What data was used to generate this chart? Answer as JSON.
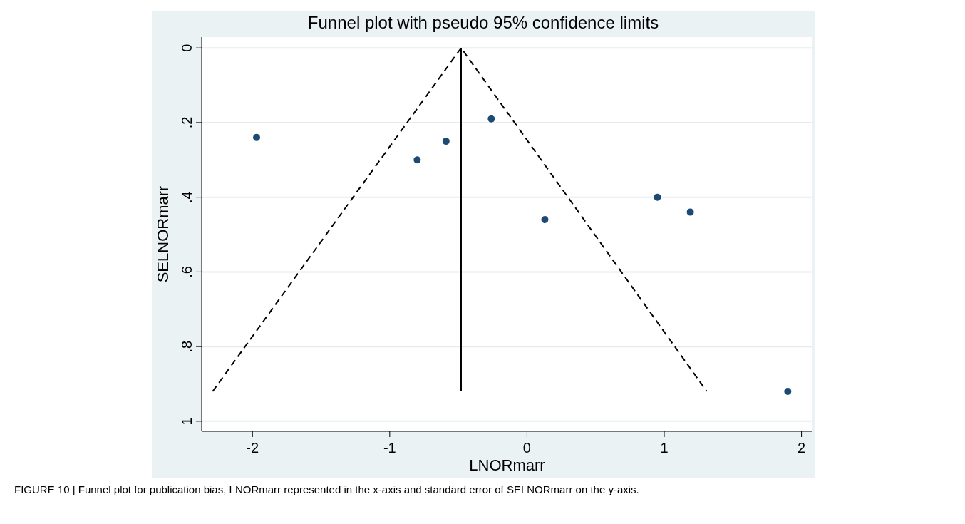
{
  "chart_data": {
    "type": "scatter",
    "title": "Funnel plot with pseudo 95% confidence limits",
    "xlabel": "LNORmarr",
    "ylabel": "SELNORmarr",
    "xlim": [
      -2.37,
      2.08
    ],
    "xticks": [
      -2,
      -1,
      0,
      1,
      2
    ],
    "ylim": [
      1.027,
      -0.029
    ],
    "yticks": [
      {
        "value": 0,
        "label": "0"
      },
      {
        "value": 0.2,
        "label": ".2"
      },
      {
        "value": 0.4,
        "label": ".4"
      },
      {
        "value": 0.6,
        "label": ".6"
      },
      {
        "value": 0.8,
        "label": ".8"
      },
      {
        "value": 1,
        "label": "1"
      }
    ],
    "grid": "y",
    "series": [
      {
        "type": "scatter",
        "color": "#1c4a74",
        "marker": "circle",
        "x": [
          -1.97,
          -0.8,
          -0.59,
          -0.26,
          0.13,
          0.95,
          1.19,
          1.9
        ],
        "values": [
          0.24,
          0.3,
          0.25,
          0.19,
          0.46,
          0.4,
          0.44,
          0.92
        ]
      },
      {
        "type": "line",
        "color": "#000000",
        "marker": "none",
        "line_style": "dashed",
        "x": [
          -2.29,
          -0.48,
          1.31
        ],
        "values": [
          0.92,
          0,
          0.92
        ]
      },
      {
        "type": "line",
        "color": "#000000",
        "marker": "none",
        "line_style": "solid",
        "x": [
          -0.48,
          -0.48
        ],
        "values": [
          0,
          0.92
        ]
      }
    ],
    "annotations": [
      "FIGURE 10 | Funnel plot for publication bias, LNORmarr represented in the x-axis and standard error of SELNORmarr on the y-axis."
    ]
  }
}
